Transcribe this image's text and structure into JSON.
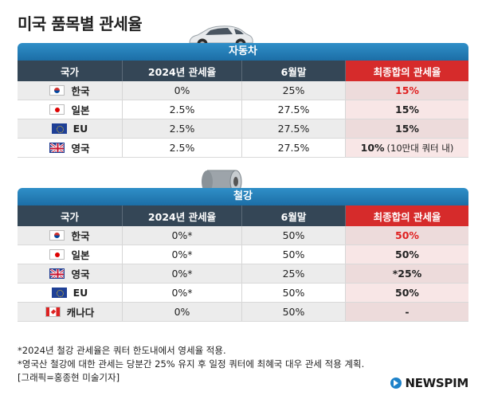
{
  "title": "미국 품목별 관세율",
  "columns": [
    "국가",
    "2024년 관세율",
    "6월말",
    "최종합의 관세율"
  ],
  "auto": {
    "banner": "자동차",
    "rows": [
      {
        "flag": "kr",
        "country": "한국",
        "rate2024": "0%",
        "june": "25%",
        "final": "15%",
        "final_red": true,
        "final_note": ""
      },
      {
        "flag": "jp",
        "country": "일본",
        "rate2024": "2.5%",
        "june": "27.5%",
        "final": "15%",
        "final_red": false,
        "final_note": ""
      },
      {
        "flag": "eu",
        "country": "EU",
        "rate2024": "2.5%",
        "june": "27.5%",
        "final": "15%",
        "final_red": false,
        "final_note": ""
      },
      {
        "flag": "uk",
        "country": "영국",
        "rate2024": "2.5%",
        "june": "27.5%",
        "final": "10%",
        "final_red": false,
        "final_note": "(10만대 쿼터 내)"
      }
    ]
  },
  "steel": {
    "banner": "철강",
    "rows": [
      {
        "flag": "kr",
        "country": "한국",
        "rate2024": "0%*",
        "june": "50%",
        "final": "50%",
        "final_red": true
      },
      {
        "flag": "jp",
        "country": "일본",
        "rate2024": "0%*",
        "june": "50%",
        "final": "50%",
        "final_red": false
      },
      {
        "flag": "uk",
        "country": "영국",
        "rate2024": "0%*",
        "june": "25%",
        "final": "*25%",
        "final_red": false
      },
      {
        "flag": "eu",
        "country": "EU",
        "rate2024": "0%*",
        "june": "50%",
        "final": "50%",
        "final_red": false
      },
      {
        "flag": "ca",
        "country": "캐나다",
        "rate2024": "0%",
        "june": "50%",
        "final": "-",
        "final_red": false
      }
    ]
  },
  "footnotes": [
    "*2024년 철강 관세율은 쿼터 한도내에서 영세율 적용.",
    "*영국산 철강에 대한 관세는 당분간 25% 유지 후 일정 쿼터에 최혜국 대우 관세 적용 계획.",
    "[그래픽=홍종현 미술기자]"
  ],
  "logo": "NEWSPIM",
  "colors": {
    "banner": "#2380bb",
    "header": "#344656",
    "final_header": "#d62b2b",
    "red_text": "#e02020"
  }
}
